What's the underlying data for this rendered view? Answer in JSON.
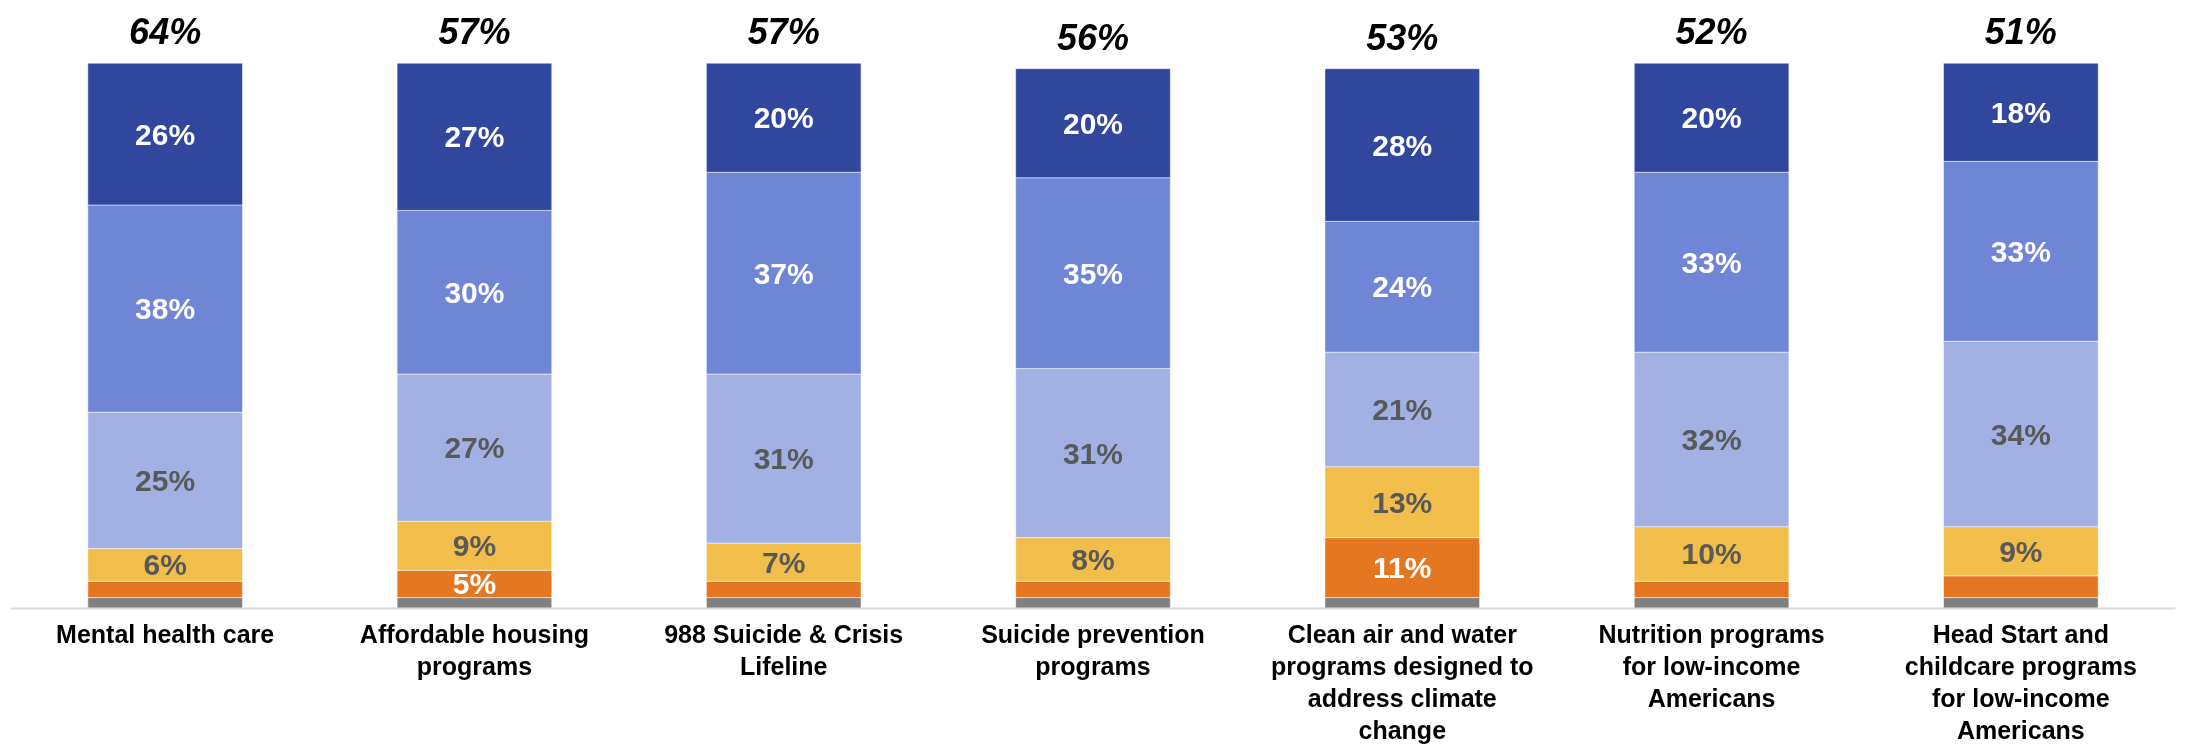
{
  "chart_data": {
    "type": "bar",
    "stacked": true,
    "categories": [
      "Mental health care",
      "Affordable housing programs",
      "988 Suicide & Crisis Lifeline",
      "Suicide prevention programs",
      "Clean air and water programs designed to address climate change",
      "Nutrition programs for low-income Americans",
      "Head Start and childcare programs for low-income Americans"
    ],
    "series": [
      {
        "color": "#808080",
        "values": [
          2,
          2,
          2,
          2,
          2,
          2,
          2
        ]
      },
      {
        "color": "#e67722",
        "values": [
          3,
          5,
          3,
          3,
          11,
          3,
          4
        ],
        "value_labels": [
          null,
          "5%",
          null,
          null,
          "11%",
          null,
          null
        ]
      },
      {
        "color": "#f1be4b",
        "values": [
          6,
          9,
          7,
          8,
          13,
          10,
          9
        ],
        "value_labels": [
          "6%",
          "9%",
          "7%",
          "8%",
          "13%",
          "10%",
          "9%"
        ]
      },
      {
        "color": "#a2b0e3",
        "values": [
          25,
          27,
          31,
          31,
          21,
          32,
          34
        ],
        "value_labels": [
          "25%",
          "27%",
          "31%",
          "31%",
          "21%",
          "32%",
          "34%"
        ]
      },
      {
        "color": "#6f86d6",
        "values": [
          38,
          30,
          37,
          35,
          24,
          33,
          33
        ],
        "value_labels": [
          "38%",
          "30%",
          "37%",
          "35%",
          "24%",
          "33%",
          "33%"
        ]
      },
      {
        "color": "#31479e",
        "values": [
          26,
          27,
          20,
          20,
          28,
          20,
          18
        ],
        "value_labels": [
          "26%",
          "27%",
          "20%",
          "20%",
          "28%",
          "20%",
          "18%"
        ]
      }
    ],
    "annotations": [
      {
        "text": "64%",
        "x": "Mental health care",
        "y": 100
      },
      {
        "text": "57%",
        "x": "Affordable housing programs",
        "y": 100
      },
      {
        "text": "57%",
        "x": "988 Suicide & Crisis Lifeline",
        "y": 100
      },
      {
        "text": "56%",
        "x": "Suicide prevention programs",
        "y": 99
      },
      {
        "text": "53%",
        "x": "Clean air and water programs designed to address climate change",
        "y": 99
      },
      {
        "text": "52%",
        "x": "Nutrition programs for low-income Americans",
        "y": 100
      },
      {
        "text": "51%",
        "x": "Head Start and childcare programs for low-income Americans",
        "y": 100
      }
    ],
    "grid": false
  }
}
